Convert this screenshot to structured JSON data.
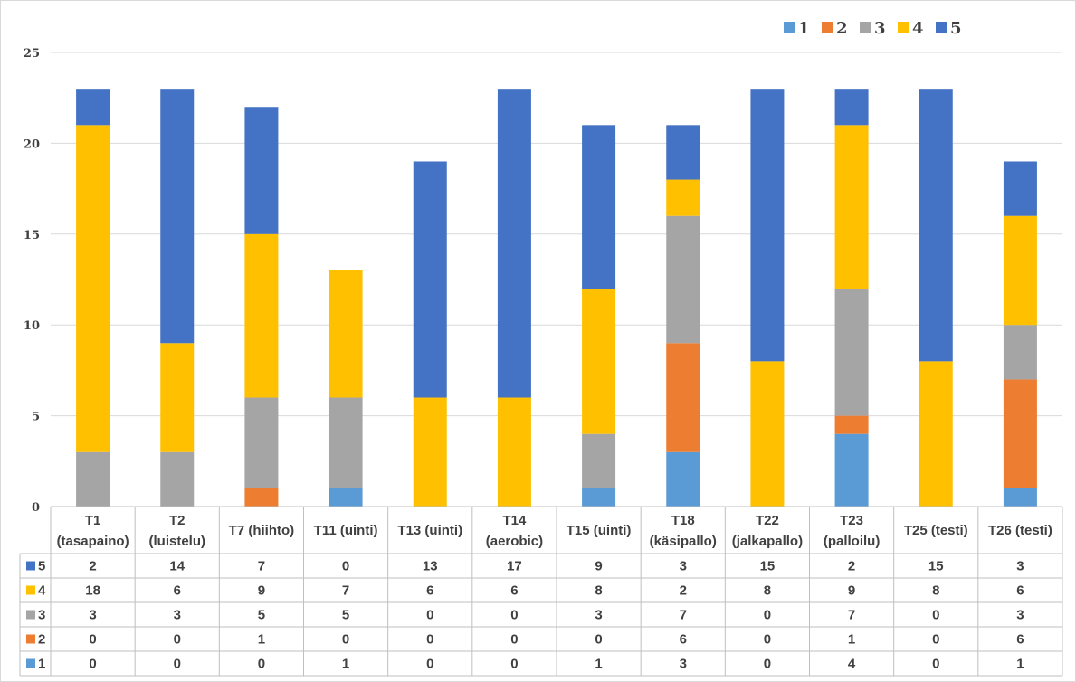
{
  "chart_data": {
    "type": "bar",
    "stacked": true,
    "categories": [
      "T1 (tasapaino)",
      "T2 (luistelu)",
      "T7 (hiihto)",
      "T11 (uinti)",
      "T13 (uinti)",
      "T14 (aerobic)",
      "T15 (uinti)",
      "T18 (käsipallo)",
      "T22 (jalkapallo)",
      "T23 (palloilu)",
      "T25 (testi)",
      "T26 (testi)"
    ],
    "series": [
      {
        "name": "1",
        "color": "#5B9BD5",
        "values": [
          0,
          0,
          0,
          1,
          0,
          0,
          1,
          3,
          0,
          4,
          0,
          1
        ]
      },
      {
        "name": "2",
        "color": "#ED7D31",
        "values": [
          0,
          0,
          1,
          0,
          0,
          0,
          0,
          6,
          0,
          1,
          0,
          6
        ]
      },
      {
        "name": "3",
        "color": "#A5A5A5",
        "values": [
          3,
          3,
          5,
          5,
          0,
          0,
          3,
          7,
          0,
          7,
          0,
          3
        ]
      },
      {
        "name": "4",
        "color": "#FFC000",
        "values": [
          18,
          6,
          9,
          7,
          6,
          6,
          8,
          2,
          8,
          9,
          8,
          6
        ]
      },
      {
        "name": "5",
        "color": "#4472C4",
        "values": [
          2,
          14,
          7,
          0,
          13,
          17,
          9,
          3,
          15,
          2,
          15,
          3
        ]
      }
    ],
    "ylim": [
      0,
      25
    ],
    "yticks": [
      "0",
      "5",
      "10",
      "15",
      "20",
      "25"
    ],
    "grid": true,
    "legend_position": "top-right",
    "data_table": true
  }
}
